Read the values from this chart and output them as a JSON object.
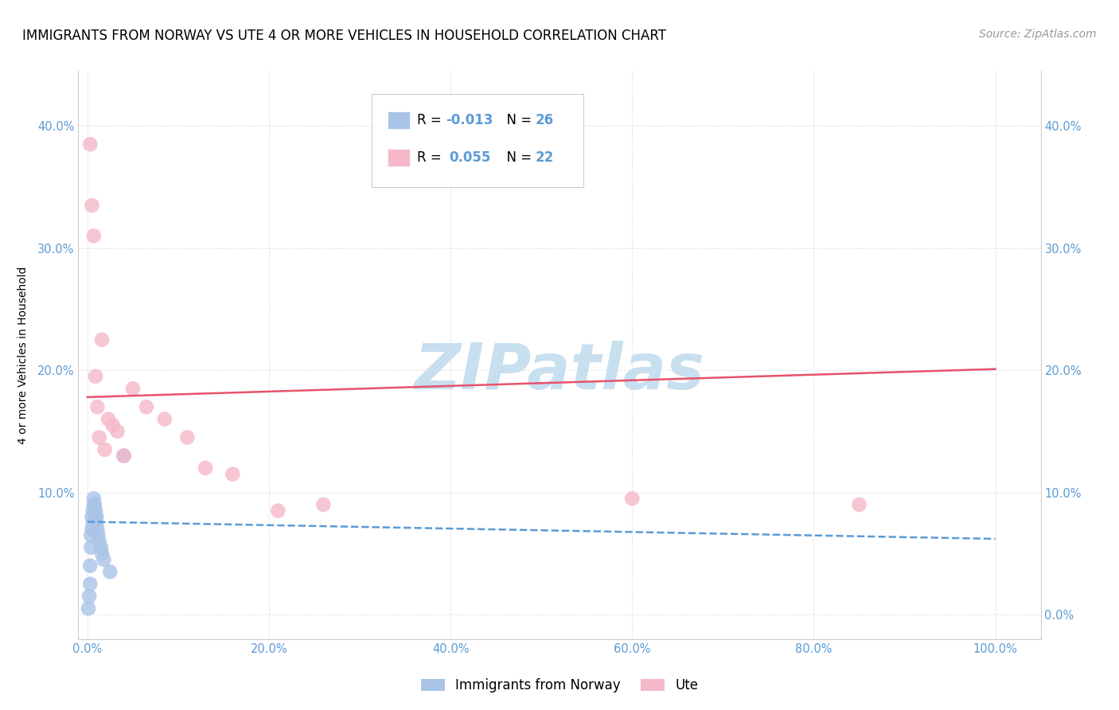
{
  "title": "IMMIGRANTS FROM NORWAY VS UTE 4 OR MORE VEHICLES IN HOUSEHOLD CORRELATION CHART",
  "source": "Source: ZipAtlas.com",
  "ylabel": "4 or more Vehicles in Household",
  "x_tick_labels": [
    "0.0%",
    "20.0%",
    "40.0%",
    "60.0%",
    "80.0%",
    "100.0%"
  ],
  "x_tick_vals": [
    0.0,
    0.2,
    0.4,
    0.6,
    0.8,
    1.0
  ],
  "y_tick_labels_left": [
    "",
    "10.0%",
    "20.0%",
    "30.0%",
    "40.0%"
  ],
  "y_tick_labels_right": [
    "0.0%",
    "10.0%",
    "20.0%",
    "30.0%",
    "40.0%"
  ],
  "y_tick_vals": [
    0.0,
    0.1,
    0.2,
    0.3,
    0.4
  ],
  "xlim": [
    -0.01,
    1.05
  ],
  "ylim": [
    -0.02,
    0.445
  ],
  "legend_labels": [
    "Immigrants from Norway",
    "Ute"
  ],
  "norway_color": "#aac4e8",
  "ute_color": "#f4b8c8",
  "norway_line_color": "#5b9bd5",
  "ute_line_color": "#e8526a",
  "norway_scatter_x": [
    0.001,
    0.002,
    0.003,
    0.003,
    0.004,
    0.004,
    0.005,
    0.005,
    0.006,
    0.006,
    0.007,
    0.007,
    0.008,
    0.008,
    0.009,
    0.009,
    0.01,
    0.01,
    0.011,
    0.012,
    0.013,
    0.015,
    0.016,
    0.018,
    0.025,
    0.04
  ],
  "norway_scatter_y": [
    0.005,
    0.015,
    0.025,
    0.04,
    0.055,
    0.065,
    0.07,
    0.08,
    0.075,
    0.085,
    0.09,
    0.095,
    0.085,
    0.09,
    0.08,
    0.085,
    0.075,
    0.08,
    0.07,
    0.065,
    0.06,
    0.055,
    0.05,
    0.045,
    0.035,
    0.13
  ],
  "ute_scatter_x": [
    0.003,
    0.005,
    0.007,
    0.009,
    0.011,
    0.013,
    0.016,
    0.019,
    0.023,
    0.028,
    0.033,
    0.04,
    0.05,
    0.065,
    0.085,
    0.11,
    0.13,
    0.16,
    0.21,
    0.26,
    0.6,
    0.85
  ],
  "ute_scatter_y": [
    0.385,
    0.335,
    0.31,
    0.195,
    0.17,
    0.145,
    0.225,
    0.135,
    0.16,
    0.155,
    0.15,
    0.13,
    0.185,
    0.17,
    0.16,
    0.145,
    0.12,
    0.115,
    0.085,
    0.09,
    0.095,
    0.09
  ],
  "norway_trend_x": [
    0.0,
    1.0
  ],
  "norway_trend_y": [
    0.076,
    0.062
  ],
  "ute_trend_x": [
    0.0,
    1.0
  ],
  "ute_trend_y": [
    0.178,
    0.201
  ],
  "background_color": "#ffffff",
  "grid_color": "#e0e0e0",
  "watermark_text": "ZIPatlas",
  "watermark_color": "#c8dff0",
  "title_fontsize": 12,
  "axis_label_fontsize": 10,
  "tick_fontsize": 10.5,
  "legend_fontsize": 12,
  "source_fontsize": 10
}
